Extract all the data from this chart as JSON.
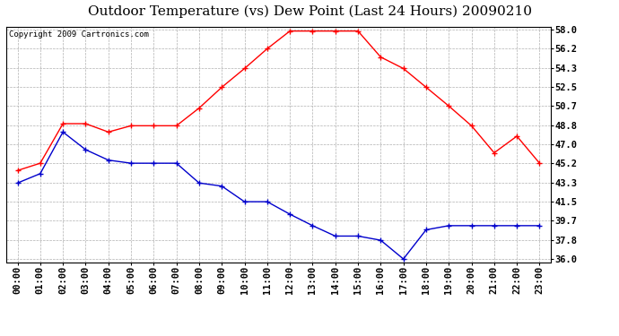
{
  "title": "Outdoor Temperature (vs) Dew Point (Last 24 Hours) 20090210",
  "copyright": "Copyright 2009 Cartronics.com",
  "x_labels": [
    "00:00",
    "01:00",
    "02:00",
    "03:00",
    "04:00",
    "05:00",
    "06:00",
    "07:00",
    "08:00",
    "09:00",
    "10:00",
    "11:00",
    "12:00",
    "13:00",
    "14:00",
    "15:00",
    "16:00",
    "17:00",
    "18:00",
    "19:00",
    "20:00",
    "21:00",
    "22:00",
    "23:00"
  ],
  "temp_values": [
    44.5,
    45.2,
    49.0,
    49.0,
    48.2,
    48.8,
    48.8,
    48.8,
    50.5,
    52.5,
    54.3,
    56.2,
    57.9,
    57.9,
    57.9,
    57.9,
    55.4,
    54.3,
    52.5,
    50.7,
    48.8,
    46.2,
    47.8,
    45.2
  ],
  "dew_values": [
    43.3,
    44.2,
    48.2,
    46.5,
    45.5,
    45.2,
    45.2,
    45.2,
    43.3,
    43.0,
    41.5,
    41.5,
    40.3,
    39.2,
    38.2,
    38.2,
    37.8,
    36.0,
    38.8,
    39.2,
    39.2,
    39.2,
    39.2,
    39.2
  ],
  "temp_color": "#ff0000",
  "dew_color": "#0000cc",
  "bg_color": "#ffffff",
  "plot_bg_color": "#ffffff",
  "grid_color": "#b0b0b0",
  "y_min": 36.0,
  "y_max": 58.0,
  "y_ticks": [
    36.0,
    37.8,
    39.7,
    41.5,
    43.3,
    45.2,
    47.0,
    48.8,
    50.7,
    52.5,
    54.3,
    56.2,
    58.0
  ],
  "title_fontsize": 11,
  "copyright_fontsize": 6.5,
  "tick_fontsize": 7.5
}
